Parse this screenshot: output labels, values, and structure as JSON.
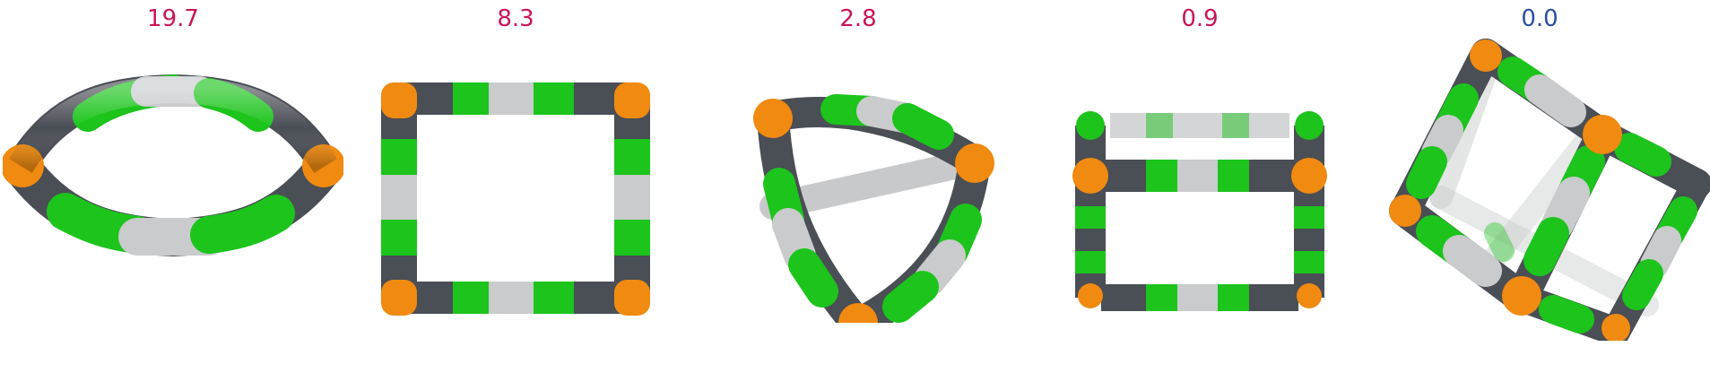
{
  "panels": [
    {
      "label": "19.7",
      "label_color": "#c8155a"
    },
    {
      "label": "8.3",
      "label_color": "#c8155a"
    },
    {
      "label": "2.8",
      "label_color": "#c8155a"
    },
    {
      "label": "0.9",
      "label_color": "#c8155a"
    },
    {
      "label": "0.0",
      "label_color": "#2b4fa0"
    }
  ],
  "colors": {
    "vertex": "#f08a10",
    "dark_segment": "#4a4e55",
    "green_segment": "#1cc41c",
    "light_segment": "#c9cbcc"
  }
}
